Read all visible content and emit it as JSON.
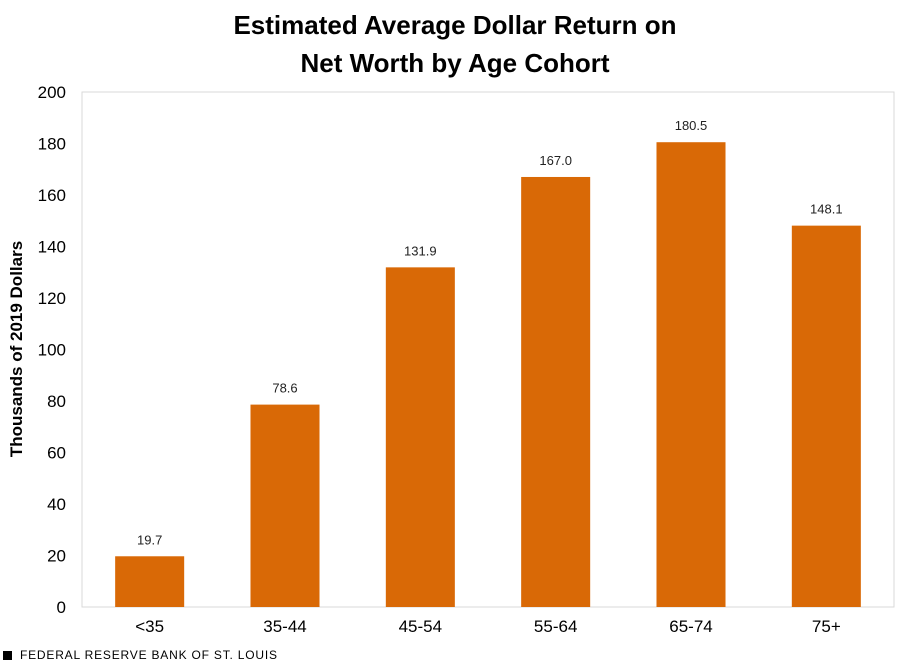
{
  "chart_data": {
    "type": "bar",
    "title_lines": [
      "Estimated Average Dollar Return on",
      "Net Worth by Age Cohort"
    ],
    "ylabel": "Thousands  of 2019 Dollars",
    "xlabel": "",
    "categories": [
      "<35",
      "35-44",
      "45-54",
      "55-64",
      "65-74",
      "75+"
    ],
    "values": [
      19.7,
      78.6,
      131.9,
      167.0,
      180.5,
      148.1
    ],
    "data_labels": [
      "19.7",
      "78.6",
      "131.9",
      "167.0",
      "180.5",
      "148.1"
    ],
    "ylim": [
      0,
      200
    ],
    "yticks": [
      0,
      20,
      40,
      60,
      80,
      100,
      120,
      140,
      160,
      180,
      200
    ],
    "bar_color": "#D96906",
    "grid": false
  },
  "footer": {
    "source": "FEDERAL RESERVE BANK OF ST. LOUIS"
  }
}
